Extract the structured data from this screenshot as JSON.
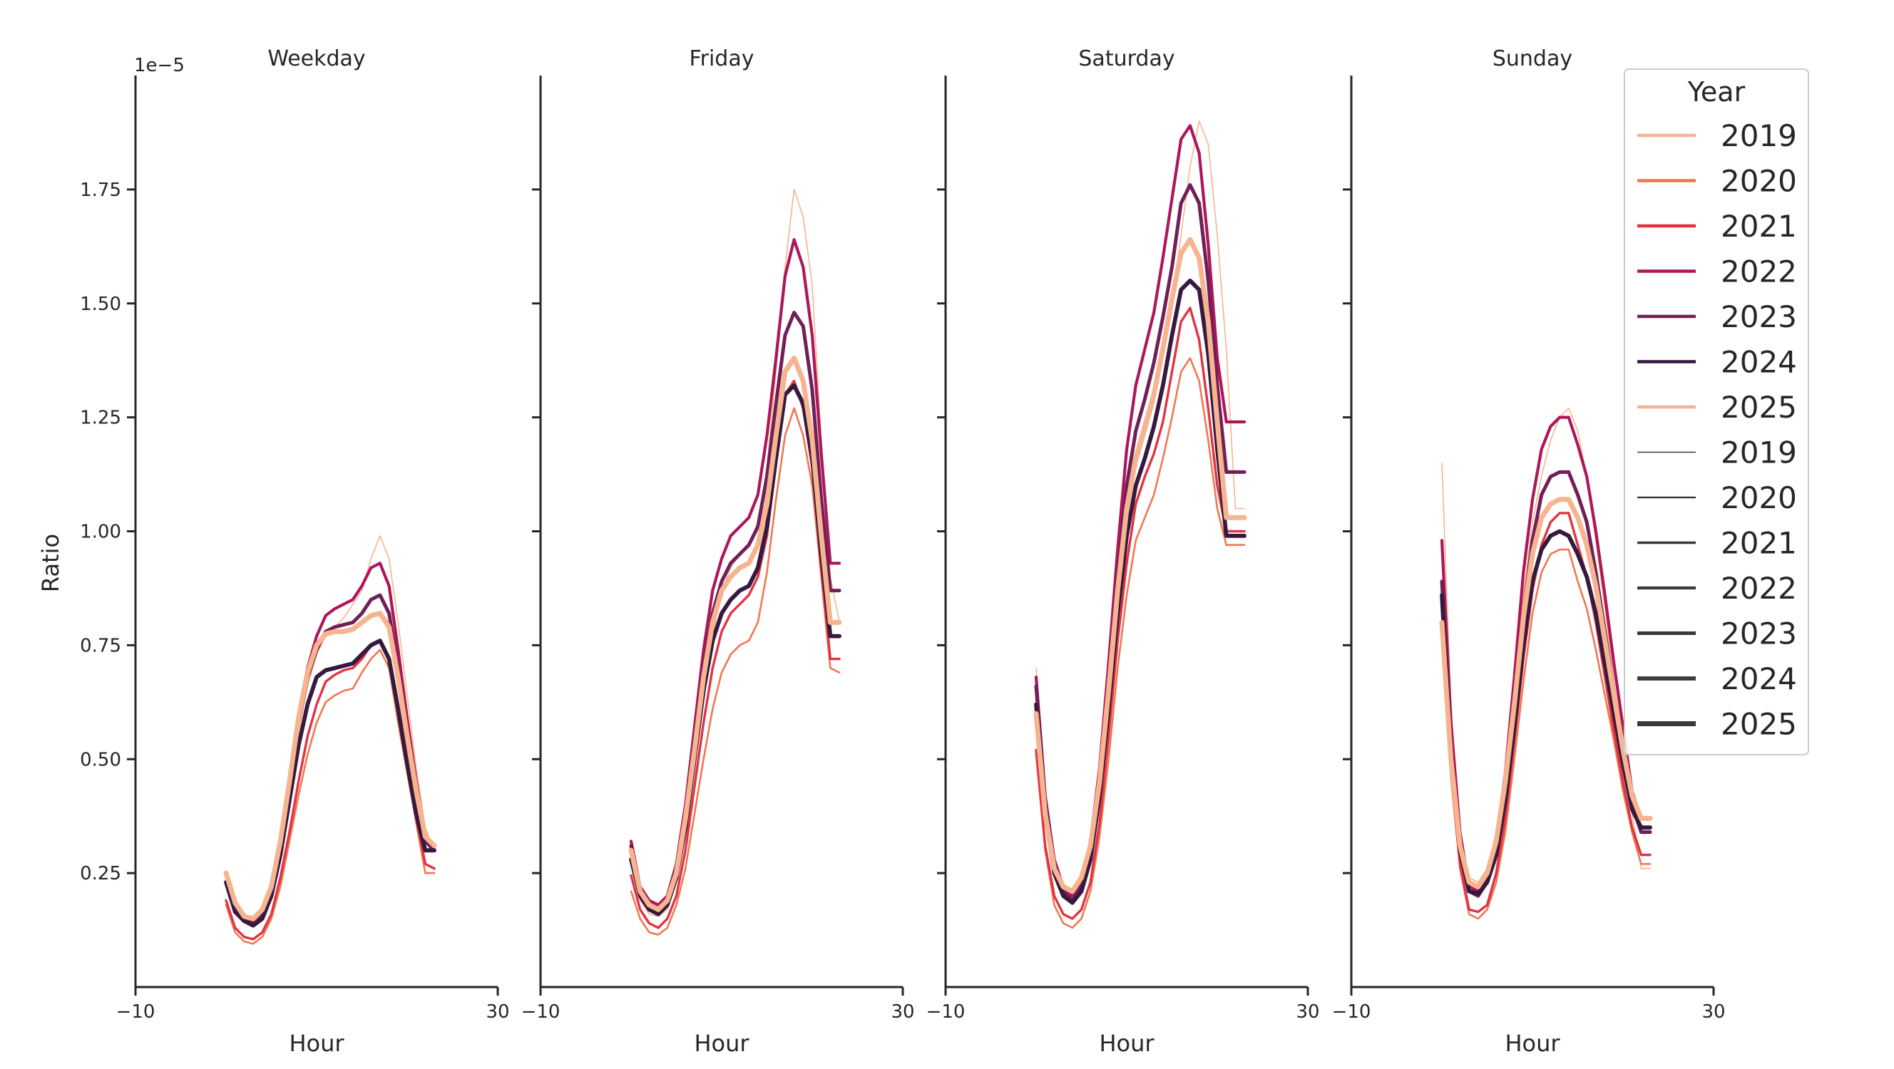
{
  "chart_data": {
    "type": "line",
    "ylabel": "Ratio",
    "xlabel": "Hour",
    "y_offset_label": "1e−5",
    "y_scale": 1e-05,
    "xlim": [
      -10,
      30
    ],
    "ylim": [
      0,
      2.0
    ],
    "x_ticks": [
      -10,
      30
    ],
    "x_tick_labels": [
      "−10",
      "30"
    ],
    "y_ticks": [
      0.25,
      0.5,
      0.75,
      1.0,
      1.25,
      1.5,
      1.75
    ],
    "y_tick_labels": [
      "0.25",
      "0.50",
      "0.75",
      "1.00",
      "1.25",
      "1.50",
      "1.75"
    ],
    "legend": {
      "title": "Year",
      "placement": "top-right",
      "hue_entries": [
        "2019",
        "2020",
        "2021",
        "2022",
        "2023",
        "2024",
        "2025"
      ],
      "size_entries": [
        "2019",
        "2020",
        "2021",
        "2022",
        "2023",
        "2024",
        "2025"
      ]
    },
    "years": [
      "2019",
      "2020",
      "2021",
      "2022",
      "2023",
      "2024",
      "2025"
    ],
    "colors": {
      "2019": "#f6b48f",
      "2020": "#f37651",
      "2021": "#e13342",
      "2022": "#ad1759",
      "2023": "#701f57",
      "2024": "#35193e",
      "2025": "#f6b48f"
    },
    "legend_size_color": "#3a3a3a",
    "widths": {
      "2019": 1.6,
      "2020": 2.6,
      "2021": 3.4,
      "2022": 4.2,
      "2023": 5.0,
      "2024": 5.8,
      "2025": 7.0
    },
    "hours": [
      0,
      1,
      2,
      3,
      4,
      5,
      6,
      7,
      8,
      9,
      10,
      11,
      12,
      13,
      14,
      15,
      16,
      17,
      18,
      19,
      20,
      21,
      22,
      23
    ],
    "panels": [
      {
        "title": "Weekday",
        "series": {
          "2019": [
            0.255,
            0.18,
            0.15,
            0.14,
            0.16,
            0.21,
            0.3,
            0.43,
            0.56,
            0.66,
            0.73,
            0.77,
            0.79,
            0.81,
            0.84,
            0.87,
            0.94,
            0.99,
            0.94,
            0.8,
            0.64,
            0.48,
            0.35,
            0.3
          ],
          "2020": [
            0.18,
            0.12,
            0.1,
            0.095,
            0.11,
            0.15,
            0.22,
            0.32,
            0.42,
            0.51,
            0.58,
            0.625,
            0.64,
            0.65,
            0.655,
            0.69,
            0.72,
            0.74,
            0.7,
            0.58,
            0.47,
            0.36,
            0.25,
            0.25
          ],
          "2021": [
            0.19,
            0.13,
            0.11,
            0.105,
            0.12,
            0.16,
            0.24,
            0.34,
            0.45,
            0.55,
            0.62,
            0.67,
            0.685,
            0.695,
            0.7,
            0.72,
            0.75,
            0.76,
            0.72,
            0.6,
            0.48,
            0.37,
            0.27,
            0.26
          ],
          "2022": [
            0.25,
            0.18,
            0.15,
            0.14,
            0.16,
            0.22,
            0.32,
            0.46,
            0.6,
            0.7,
            0.77,
            0.815,
            0.83,
            0.84,
            0.85,
            0.88,
            0.92,
            0.93,
            0.88,
            0.74,
            0.59,
            0.45,
            0.33,
            0.3
          ],
          "2023": [
            0.25,
            0.18,
            0.15,
            0.14,
            0.16,
            0.22,
            0.32,
            0.45,
            0.58,
            0.68,
            0.74,
            0.78,
            0.79,
            0.795,
            0.8,
            0.82,
            0.85,
            0.86,
            0.82,
            0.7,
            0.56,
            0.43,
            0.32,
            0.3
          ],
          "2024": [
            0.23,
            0.165,
            0.145,
            0.135,
            0.15,
            0.2,
            0.29,
            0.41,
            0.53,
            0.62,
            0.68,
            0.695,
            0.7,
            0.705,
            0.71,
            0.73,
            0.75,
            0.76,
            0.72,
            0.61,
            0.49,
            0.38,
            0.3,
            0.3
          ],
          "2025": [
            0.25,
            0.185,
            0.155,
            0.15,
            0.17,
            0.22,
            0.32,
            0.45,
            0.59,
            0.69,
            0.75,
            0.775,
            0.78,
            0.78,
            0.785,
            0.8,
            0.815,
            0.82,
            0.79,
            0.68,
            0.55,
            0.43,
            0.33,
            0.31
          ]
        }
      },
      {
        "title": "Friday",
        "series": {
          "2019": [
            0.27,
            0.19,
            0.16,
            0.155,
            0.17,
            0.23,
            0.34,
            0.49,
            0.64,
            0.77,
            0.87,
            0.92,
            0.95,
            0.97,
            1.02,
            1.14,
            1.35,
            1.58,
            1.75,
            1.69,
            1.54,
            1.2,
            0.9,
            0.8
          ],
          "2020": [
            0.21,
            0.15,
            0.12,
            0.115,
            0.13,
            0.18,
            0.26,
            0.38,
            0.5,
            0.61,
            0.69,
            0.73,
            0.75,
            0.76,
            0.8,
            0.91,
            1.07,
            1.21,
            1.27,
            1.21,
            1.1,
            0.9,
            0.7,
            0.69
          ],
          "2021": [
            0.245,
            0.17,
            0.14,
            0.13,
            0.15,
            0.2,
            0.3,
            0.44,
            0.58,
            0.7,
            0.78,
            0.82,
            0.84,
            0.86,
            0.9,
            0.99,
            1.15,
            1.3,
            1.33,
            1.27,
            1.14,
            0.92,
            0.72,
            0.72
          ],
          "2022": [
            0.32,
            0.22,
            0.19,
            0.18,
            0.2,
            0.27,
            0.4,
            0.57,
            0.74,
            0.87,
            0.94,
            0.99,
            1.01,
            1.03,
            1.08,
            1.21,
            1.38,
            1.56,
            1.64,
            1.58,
            1.43,
            1.17,
            0.93,
            0.93
          ],
          "2023": [
            0.31,
            0.21,
            0.18,
            0.17,
            0.19,
            0.26,
            0.38,
            0.54,
            0.7,
            0.82,
            0.89,
            0.93,
            0.95,
            0.97,
            1.01,
            1.12,
            1.28,
            1.43,
            1.48,
            1.45,
            1.31,
            1.07,
            0.87,
            0.87
          ],
          "2024": [
            0.28,
            0.2,
            0.17,
            0.16,
            0.18,
            0.24,
            0.35,
            0.5,
            0.65,
            0.76,
            0.82,
            0.85,
            0.87,
            0.88,
            0.92,
            1.01,
            1.16,
            1.3,
            1.32,
            1.28,
            1.16,
            0.95,
            0.77,
            0.77
          ],
          "2025": [
            0.3,
            0.21,
            0.18,
            0.17,
            0.19,
            0.25,
            0.37,
            0.52,
            0.68,
            0.8,
            0.87,
            0.9,
            0.92,
            0.93,
            0.97,
            1.06,
            1.21,
            1.35,
            1.38,
            1.33,
            1.2,
            0.99,
            0.8,
            0.8
          ]
        }
      },
      {
        "title": "Saturday",
        "series": {
          "2019": [
            0.7,
            0.42,
            0.28,
            0.22,
            0.2,
            0.23,
            0.31,
            0.45,
            0.64,
            0.86,
            1.03,
            1.14,
            1.21,
            1.28,
            1.38,
            1.5,
            1.65,
            1.8,
            1.9,
            1.85,
            1.65,
            1.4,
            1.05,
            1.05
          ],
          "2020": [
            0.51,
            0.3,
            0.18,
            0.14,
            0.13,
            0.15,
            0.21,
            0.33,
            0.5,
            0.7,
            0.86,
            0.98,
            1.03,
            1.08,
            1.16,
            1.25,
            1.35,
            1.38,
            1.33,
            1.2,
            1.05,
            0.97,
            0.97,
            0.97
          ],
          "2021": [
            0.52,
            0.31,
            0.2,
            0.16,
            0.15,
            0.17,
            0.23,
            0.36,
            0.55,
            0.76,
            0.93,
            1.06,
            1.12,
            1.17,
            1.24,
            1.35,
            1.46,
            1.49,
            1.42,
            1.27,
            1.1,
            1.0,
            1.0,
            1.0
          ],
          "2022": [
            0.68,
            0.42,
            0.28,
            0.22,
            0.2,
            0.23,
            0.32,
            0.48,
            0.71,
            0.96,
            1.18,
            1.32,
            1.4,
            1.48,
            1.6,
            1.73,
            1.86,
            1.89,
            1.83,
            1.63,
            1.38,
            1.24,
            1.24,
            1.24
          ],
          "2023": [
            0.66,
            0.41,
            0.27,
            0.21,
            0.19,
            0.22,
            0.3,
            0.46,
            0.67,
            0.9,
            1.1,
            1.22,
            1.29,
            1.37,
            1.47,
            1.58,
            1.72,
            1.76,
            1.72,
            1.55,
            1.32,
            1.13,
            1.13,
            1.13
          ],
          "2024": [
            0.62,
            0.38,
            0.25,
            0.2,
            0.185,
            0.21,
            0.28,
            0.42,
            0.61,
            0.82,
            0.99,
            1.1,
            1.16,
            1.23,
            1.32,
            1.43,
            1.53,
            1.55,
            1.53,
            1.39,
            1.18,
            0.99,
            0.99,
            0.99
          ],
          "2025": [
            0.6,
            0.38,
            0.26,
            0.22,
            0.21,
            0.24,
            0.31,
            0.45,
            0.65,
            0.87,
            1.05,
            1.16,
            1.23,
            1.3,
            1.4,
            1.51,
            1.61,
            1.64,
            1.6,
            1.46,
            1.24,
            1.03,
            1.03,
            1.03
          ]
        }
      },
      {
        "title": "Sunday",
        "series": {
          "2019": [
            1.15,
            0.62,
            0.34,
            0.24,
            0.23,
            0.26,
            0.34,
            0.48,
            0.66,
            0.86,
            1.02,
            1.12,
            1.2,
            1.25,
            1.27,
            1.22,
            1.12,
            0.98,
            0.83,
            0.67,
            0.51,
            0.38,
            0.26,
            0.26
          ],
          "2020": [
            0.78,
            0.46,
            0.26,
            0.16,
            0.15,
            0.17,
            0.23,
            0.34,
            0.5,
            0.67,
            0.82,
            0.91,
            0.95,
            0.96,
            0.96,
            0.89,
            0.83,
            0.74,
            0.64,
            0.54,
            0.43,
            0.34,
            0.27,
            0.27
          ],
          "2021": [
            0.8,
            0.48,
            0.27,
            0.17,
            0.165,
            0.18,
            0.25,
            0.37,
            0.54,
            0.72,
            0.87,
            0.97,
            1.02,
            1.04,
            1.04,
            0.97,
            0.9,
            0.8,
            0.68,
            0.56,
            0.45,
            0.35,
            0.29,
            0.29
          ],
          "2022": [
            0.98,
            0.58,
            0.34,
            0.22,
            0.21,
            0.24,
            0.32,
            0.47,
            0.68,
            0.91,
            1.07,
            1.18,
            1.23,
            1.25,
            1.25,
            1.19,
            1.12,
            1.0,
            0.86,
            0.71,
            0.57,
            0.43,
            0.37,
            0.37
          ],
          "2023": [
            0.89,
            0.53,
            0.31,
            0.21,
            0.2,
            0.23,
            0.3,
            0.44,
            0.62,
            0.82,
            0.98,
            1.08,
            1.12,
            1.13,
            1.13,
            1.08,
            1.02,
            0.91,
            0.78,
            0.65,
            0.52,
            0.4,
            0.34,
            0.34
          ],
          "2024": [
            0.86,
            0.51,
            0.3,
            0.21,
            0.205,
            0.23,
            0.29,
            0.41,
            0.57,
            0.75,
            0.89,
            0.96,
            0.99,
            1.0,
            0.99,
            0.95,
            0.9,
            0.82,
            0.71,
            0.6,
            0.49,
            0.39,
            0.35,
            0.35
          ],
          "2025": [
            0.8,
            0.5,
            0.31,
            0.23,
            0.22,
            0.25,
            0.32,
            0.45,
            0.62,
            0.81,
            0.95,
            1.03,
            1.06,
            1.07,
            1.07,
            1.03,
            0.97,
            0.88,
            0.76,
            0.64,
            0.52,
            0.42,
            0.37,
            0.37
          ]
        }
      }
    ]
  }
}
